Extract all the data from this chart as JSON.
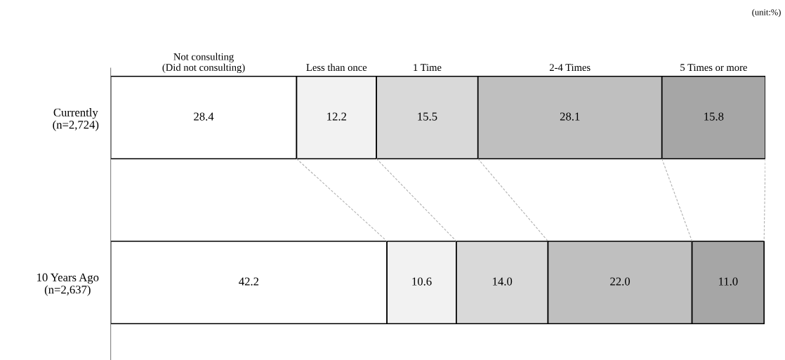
{
  "chart_data": {
    "type": "bar",
    "orientation": "horizontal",
    "stacked": true,
    "categories": [
      "Currently\n(n=2,724)",
      "10 Years Ago\n(n=2,637)"
    ],
    "series": [
      {
        "name": "Not consulting\n(Did not consulting)",
        "color": "#ffffff",
        "values": [
          28.4,
          42.2
        ],
        "value_labels": [
          "28.4",
          "42.2"
        ]
      },
      {
        "name": "Less than once",
        "color": "#f2f2f2",
        "values": [
          12.2,
          10.6
        ],
        "value_labels": [
          "12.2",
          "10.6"
        ]
      },
      {
        "name": "1 Time",
        "color": "#d9d9d9",
        "values": [
          15.5,
          14.0
        ],
        "value_labels": [
          "15.5",
          "14.0"
        ]
      },
      {
        "name": "2-4 Times",
        "color": "#bfbfbf",
        "values": [
          28.1,
          22.0
        ],
        "value_labels": [
          "28.1",
          "22.0"
        ]
      },
      {
        "name": "5 Times or more",
        "color": "#a6a6a6",
        "values": [
          15.8,
          11.0
        ],
        "value_labels": [
          "15.8",
          "11.0"
        ]
      }
    ],
    "annotations": [
      "(unit:%)"
    ]
  }
}
